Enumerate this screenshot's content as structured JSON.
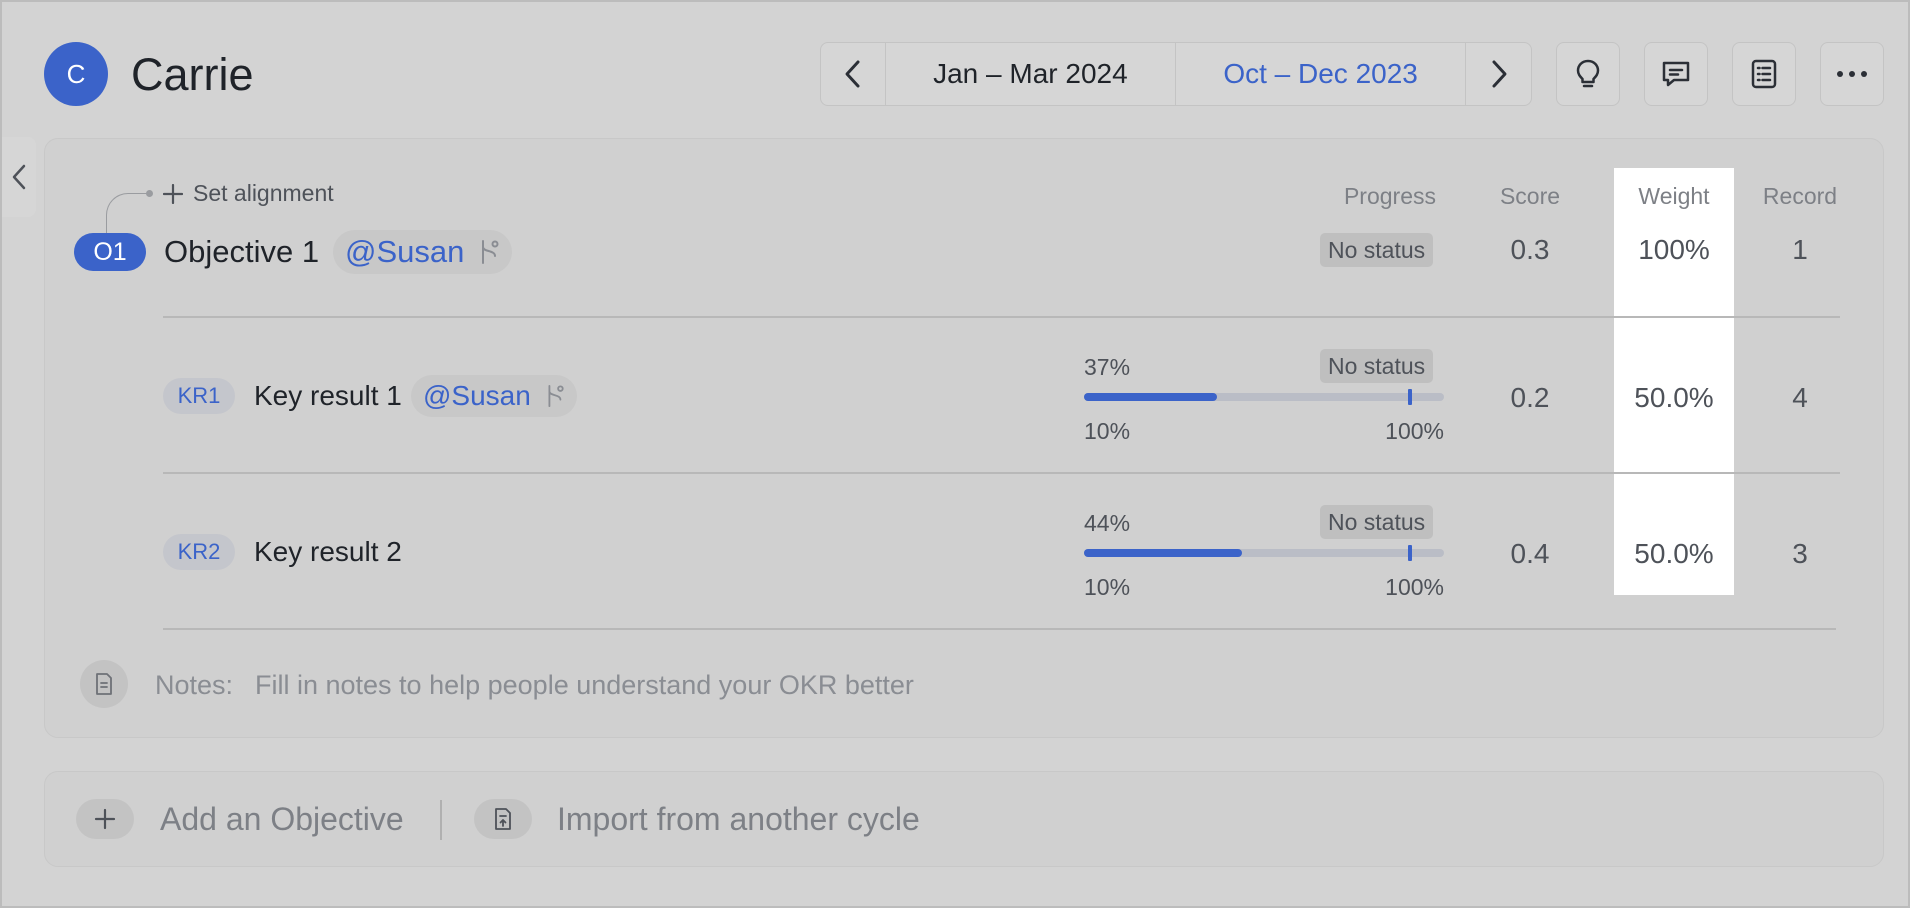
{
  "header": {
    "avatar_initial": "C",
    "user_name": "Carrie",
    "cycles": {
      "current": "Jan – Mar 2024",
      "selected": "Oct – Dec 2023"
    },
    "toolbar_icons": [
      "chevron-left-icon",
      "chevron-right-icon",
      "lightbulb-icon",
      "comment-icon",
      "list-icon",
      "more-icon"
    ]
  },
  "okr": {
    "set_alignment": "Set alignment",
    "columns": {
      "progress": "Progress",
      "score": "Score",
      "weight": "Weight",
      "record": "Record"
    },
    "objective": {
      "badge": "O1",
      "title": "Objective 1",
      "mention": "@Susan",
      "status": "No status",
      "score": "0.3",
      "weight": "100%",
      "record": "1"
    },
    "key_results": [
      {
        "badge": "KR1",
        "title": "Key result 1",
        "mention": "@Susan",
        "progress_label": "37%",
        "progress": 0.37,
        "target": 0.9,
        "start_label": "10%",
        "end_label": "100%",
        "status": "No status",
        "score": "0.2",
        "weight": "50.0%",
        "record": "4"
      },
      {
        "badge": "KR2",
        "title": "Key result 2",
        "progress_label": "44%",
        "progress": 0.44,
        "target": 0.9,
        "start_label": "10%",
        "end_label": "100%",
        "status": "No status",
        "score": "0.4",
        "weight": "50.0%",
        "record": "3"
      }
    ],
    "notes": {
      "label": "Notes:",
      "placeholder": "Fill in notes to help people understand your OKR better"
    }
  },
  "actions": {
    "add_objective": "Add an Objective",
    "import": "Import from another cycle"
  },
  "colors": {
    "accent": "#3b63c9",
    "highlight": "#ffffff"
  }
}
